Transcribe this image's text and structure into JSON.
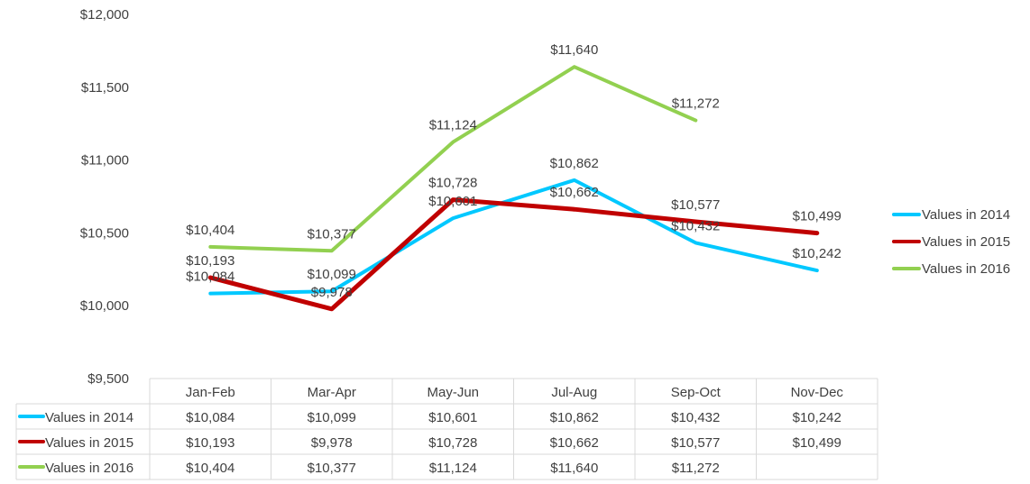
{
  "chart_data": {
    "type": "line",
    "categories": [
      "Jan-Feb",
      "Mar-Apr",
      "May-Jun",
      "Jul-Aug",
      "Sep-Oct",
      "Nov-Dec"
    ],
    "ylim": [
      9500,
      12000
    ],
    "y_ticks": [
      9500,
      10000,
      10500,
      11000,
      11500,
      12000
    ],
    "y_tick_labels": [
      "$9,500",
      "$10,000",
      "$10,500",
      "$11,000",
      "$11,500",
      "$12,000"
    ],
    "grid": false,
    "legend_position": "right",
    "data_table": true,
    "series": [
      {
        "name": "Values in 2014",
        "color": "#00c8ff",
        "values": [
          10084,
          10099,
          10601,
          10862,
          10432,
          10242
        ],
        "labels": [
          "$10,084",
          "$10,099",
          "$10,601",
          "$10,862",
          "$10,432",
          "$10,242"
        ]
      },
      {
        "name": "Values in 2015",
        "color": "#c00000",
        "values": [
          10193,
          9978,
          10728,
          10662,
          10577,
          10499
        ],
        "labels": [
          "$10,193",
          "$9,978",
          "$10,728",
          "$10,662",
          "$10,577",
          "$10,499"
        ]
      },
      {
        "name": "Values in 2016",
        "color": "#92d050",
        "values": [
          10404,
          10377,
          11124,
          11640,
          11272,
          null
        ],
        "labels": [
          "$10,404",
          "$10,377",
          "$11,124",
          "$11,640",
          "$11,272",
          ""
        ]
      }
    ]
  }
}
